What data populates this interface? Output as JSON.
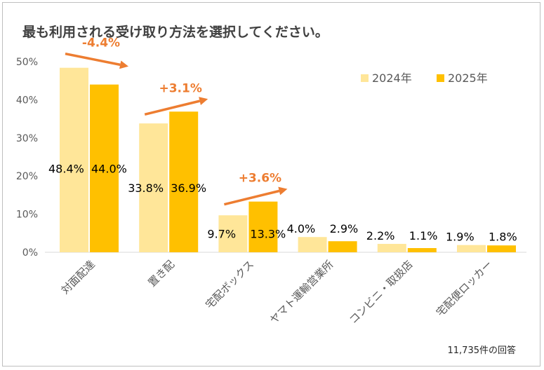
{
  "chart_data": {
    "type": "bar",
    "title": "最も利用される受け取り方法を選択してください。",
    "categories": [
      "対面配達",
      "置き配",
      "宅配ボックス",
      "ヤマト運輸営業所",
      "コンビニ・取扱店",
      "宅配便ロッカー"
    ],
    "series": [
      {
        "name": "2024年",
        "color": "#ffe699",
        "values": [
          48.4,
          33.8,
          9.7,
          4.0,
          2.2,
          1.9
        ]
      },
      {
        "name": "2025年",
        "color": "#ffc000",
        "values": [
          44.0,
          36.9,
          13.3,
          2.9,
          1.1,
          1.8
        ]
      }
    ],
    "data_labels": [
      [
        "48.4%",
        "33.8%",
        "9.7%",
        "4.0%",
        "2.2%",
        "1.9%"
      ],
      [
        "44.0%",
        "36.9%",
        "13.3%",
        "2.9%",
        "1.1%",
        "1.8%"
      ]
    ],
    "yticks": [
      "0%",
      "10%",
      "20%",
      "30%",
      "40%",
      "50%"
    ],
    "ylim": [
      0,
      50
    ],
    "grid": false,
    "legend": "top-right",
    "annotations": [
      {
        "category_index": 0,
        "text": "-4.4%"
      },
      {
        "category_index": 1,
        "text": "+3.1%"
      },
      {
        "category_index": 2,
        "text": "+3.6%"
      }
    ],
    "annotation_color": "#ed7d31",
    "footnote": "11,735件の回答"
  }
}
